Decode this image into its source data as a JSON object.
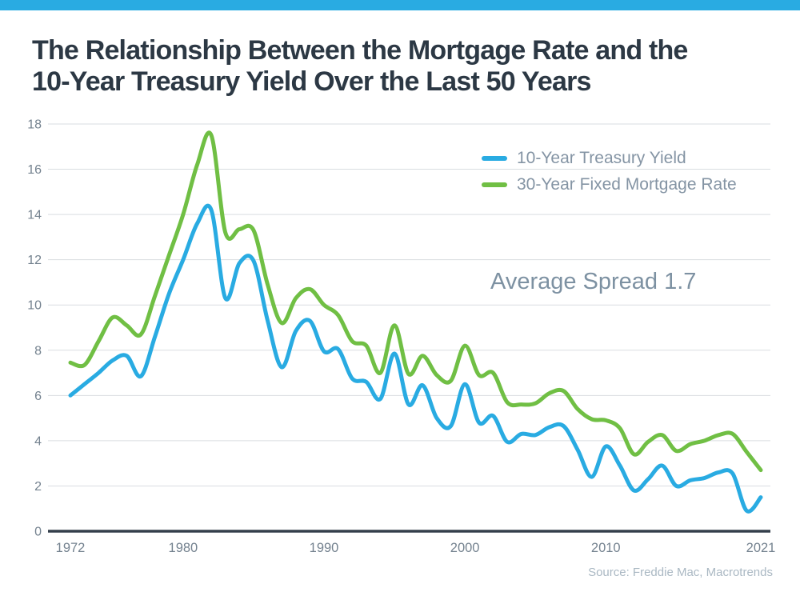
{
  "page": {
    "accent_color": "#29abe2",
    "background_color": "#ffffff"
  },
  "title": {
    "line1": "The Relationship Between the Mortgage Rate and the",
    "line2": "10-Year Treasury Yield Over the Last 50 Years"
  },
  "annotation": "Average Spread 1.7",
  "source": "Source: Freddie Mac, Macrotrends",
  "chart_data": {
    "type": "line",
    "title": "The Relationship Between the Mortgage Rate and the 10-Year Treasury Yield Over the Last 50 Years",
    "xlabel": "",
    "ylabel": "",
    "ylim": [
      0,
      18
    ],
    "ytick_step": 2,
    "xticks": [
      1972,
      1980,
      1990,
      2000,
      2010,
      2021
    ],
    "grid": true,
    "smoothing": "spline",
    "legend_position": "top-right",
    "annotation": "Average Spread 1.7",
    "x": [
      1972,
      1973,
      1974,
      1975,
      1976,
      1977,
      1978,
      1979,
      1980,
      1981,
      1982,
      1983,
      1984,
      1985,
      1986,
      1987,
      1988,
      1989,
      1990,
      1991,
      1992,
      1993,
      1994,
      1995,
      1996,
      1997,
      1998,
      1999,
      2000,
      2001,
      2002,
      2003,
      2004,
      2005,
      2006,
      2007,
      2008,
      2009,
      2010,
      2011,
      2012,
      2013,
      2014,
      2015,
      2016,
      2017,
      2018,
      2019,
      2020,
      2021
    ],
    "series": [
      {
        "name": "10-Year Treasury Yield",
        "color": "#29abe2",
        "values": [
          6.0,
          6.5,
          7.0,
          7.55,
          7.75,
          6.85,
          8.6,
          10.5,
          12.0,
          13.6,
          14.2,
          10.3,
          11.85,
          11.95,
          9.3,
          7.25,
          8.85,
          9.3,
          7.95,
          8.05,
          6.75,
          6.6,
          5.85,
          7.85,
          5.6,
          6.45,
          5.0,
          4.65,
          6.5,
          4.8,
          5.1,
          3.95,
          4.3,
          4.25,
          4.6,
          4.65,
          3.6,
          2.4,
          3.75,
          2.9,
          1.8,
          2.3,
          2.9,
          2.0,
          2.25,
          2.35,
          2.6,
          2.55,
          0.9,
          1.5
        ]
      },
      {
        "name": "30-Year Fixed Mortgage Rate",
        "color": "#70bf44",
        "values": [
          7.45,
          7.35,
          8.4,
          9.45,
          9.1,
          8.7,
          10.4,
          12.2,
          14.0,
          16.2,
          17.5,
          13.2,
          13.35,
          13.3,
          10.9,
          9.2,
          10.3,
          10.7,
          10.0,
          9.55,
          8.4,
          8.2,
          7.0,
          9.1,
          6.95,
          7.75,
          6.9,
          6.65,
          8.2,
          6.9,
          7.0,
          5.7,
          5.6,
          5.65,
          6.1,
          6.2,
          5.4,
          4.95,
          4.9,
          4.55,
          3.4,
          3.95,
          4.25,
          3.55,
          3.85,
          4.0,
          4.25,
          4.3,
          3.5,
          2.7
        ]
      }
    ]
  }
}
